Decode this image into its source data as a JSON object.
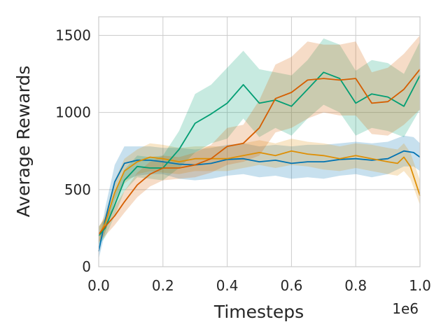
{
  "chart_data": {
    "type": "line",
    "xlabel": "Timesteps",
    "ylabel": "Average Rewards",
    "x_offset_label": "1e6",
    "xlim": [
      0,
      1.0
    ],
    "ylim": [
      0,
      1620
    ],
    "grid": true,
    "legend": "none",
    "x_ticks": [
      0.0,
      0.2,
      0.4,
      0.6,
      0.8,
      1.0
    ],
    "x_tick_labels": [
      "0.0",
      "0.2",
      "0.4",
      "0.6",
      "0.8",
      "1.0"
    ],
    "y_ticks": [
      0,
      500,
      1000,
      1500
    ],
    "y_tick_labels": [
      "0",
      "500",
      "1000",
      "1500"
    ],
    "colors": {
      "blue": "#0173b2",
      "orange": "#de8f05",
      "green": "#029e73",
      "red": "#d55e00",
      "grid": "#cccccc",
      "frame": "#cccccc"
    },
    "series": [
      {
        "color": "#0173b2",
        "x": [
          0,
          0.02,
          0.05,
          0.08,
          0.12,
          0.16,
          0.2,
          0.25,
          0.3,
          0.35,
          0.4,
          0.45,
          0.5,
          0.55,
          0.6,
          0.65,
          0.7,
          0.75,
          0.8,
          0.85,
          0.9,
          0.95,
          0.98,
          1.0
        ],
        "y": [
          100,
          300,
          550,
          670,
          690,
          690,
          680,
          665,
          660,
          670,
          695,
          700,
          680,
          690,
          670,
          680,
          680,
          695,
          700,
          690,
          700,
          750,
          740,
          710
        ],
        "lower": [
          50,
          220,
          430,
          560,
          590,
          600,
          600,
          570,
          560,
          570,
          590,
          600,
          580,
          590,
          570,
          580,
          570,
          590,
          600,
          580,
          600,
          650,
          650,
          620
        ],
        "upper": [
          150,
          380,
          660,
          780,
          780,
          780,
          770,
          770,
          760,
          770,
          790,
          800,
          780,
          790,
          780,
          790,
          790,
          800,
          810,
          800,
          810,
          850,
          840,
          800
        ]
      },
      {
        "color": "#de8f05",
        "x": [
          0,
          0.02,
          0.05,
          0.08,
          0.12,
          0.16,
          0.2,
          0.25,
          0.3,
          0.35,
          0.4,
          0.45,
          0.5,
          0.55,
          0.6,
          0.65,
          0.7,
          0.75,
          0.8,
          0.85,
          0.9,
          0.93,
          0.95,
          0.97,
          1.0
        ],
        "y": [
          200,
          280,
          480,
          620,
          680,
          710,
          700,
          680,
          700,
          700,
          700,
          720,
          740,
          720,
          750,
          730,
          720,
          700,
          720,
          700,
          680,
          670,
          710,
          650,
          460
        ],
        "lower": [
          150,
          220,
          400,
          540,
          600,
          620,
          610,
          600,
          620,
          620,
          620,
          640,
          660,
          640,
          660,
          650,
          630,
          620,
          640,
          620,
          600,
          590,
          620,
          570,
          400
        ],
        "upper": [
          250,
          340,
          560,
          700,
          760,
          800,
          790,
          770,
          780,
          780,
          780,
          800,
          820,
          800,
          830,
          810,
          800,
          780,
          800,
          790,
          770,
          760,
          800,
          740,
          560
        ]
      },
      {
        "color": "#029e73",
        "x": [
          0,
          0.02,
          0.05,
          0.08,
          0.12,
          0.16,
          0.2,
          0.25,
          0.3,
          0.35,
          0.4,
          0.45,
          0.5,
          0.55,
          0.6,
          0.65,
          0.7,
          0.75,
          0.8,
          0.85,
          0.9,
          0.95,
          1.0
        ],
        "y": [
          200,
          250,
          400,
          560,
          650,
          640,
          640,
          760,
          930,
          990,
          1060,
          1180,
          1060,
          1080,
          1040,
          1150,
          1260,
          1220,
          1060,
          1120,
          1100,
          1040,
          1240
        ],
        "lower": [
          140,
          190,
          330,
          490,
          580,
          570,
          560,
          640,
          740,
          800,
          830,
          960,
          840,
          900,
          850,
          960,
          1050,
          1000,
          850,
          900,
          880,
          840,
          1020
        ],
        "upper": [
          260,
          310,
          470,
          630,
          720,
          710,
          720,
          880,
          1120,
          1180,
          1290,
          1400,
          1280,
          1260,
          1240,
          1340,
          1480,
          1440,
          1270,
          1340,
          1320,
          1250,
          1460
        ]
      },
      {
        "color": "#d55e00",
        "x": [
          0,
          0.02,
          0.05,
          0.08,
          0.12,
          0.16,
          0.2,
          0.25,
          0.3,
          0.35,
          0.4,
          0.45,
          0.5,
          0.55,
          0.6,
          0.65,
          0.7,
          0.75,
          0.8,
          0.85,
          0.9,
          0.95,
          1.0
        ],
        "y": [
          210,
          260,
          330,
          420,
          530,
          600,
          640,
          640,
          660,
          700,
          780,
          800,
          900,
          1090,
          1130,
          1210,
          1220,
          1210,
          1220,
          1060,
          1070,
          1150,
          1280
        ],
        "lower": [
          160,
          200,
          270,
          350,
          450,
          520,
          560,
          570,
          580,
          610,
          660,
          680,
          720,
          870,
          900,
          960,
          1000,
          980,
          980,
          860,
          850,
          920,
          1020
        ],
        "upper": [
          260,
          320,
          390,
          490,
          610,
          680,
          720,
          710,
          740,
          790,
          900,
          920,
          1080,
          1310,
          1360,
          1460,
          1440,
          1440,
          1460,
          1260,
          1290,
          1380,
          1500
        ]
      }
    ]
  }
}
